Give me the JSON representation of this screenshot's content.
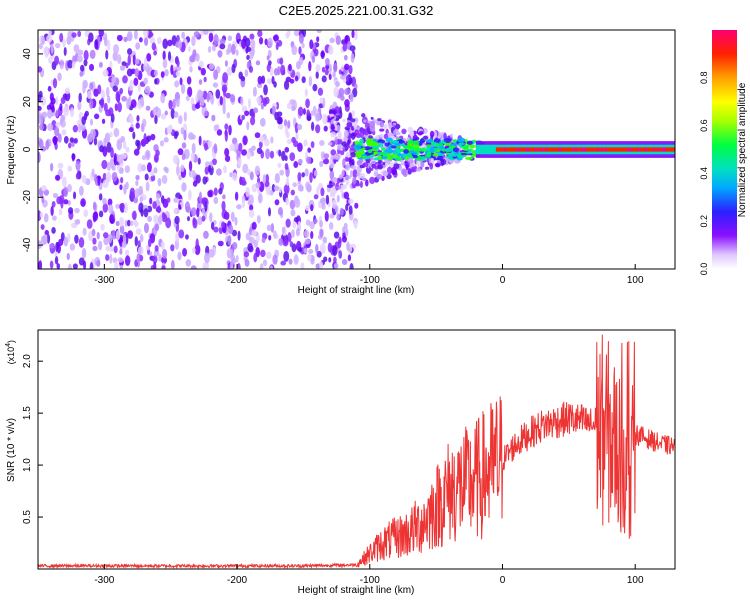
{
  "title": "C2E5.2025.221.00.31.G32",
  "chart_data": [
    {
      "type": "heatmap",
      "xlabel": "Height of straight line (km)",
      "ylabel": "Frequency (Hz)",
      "xlim": [
        -350,
        130
      ],
      "ylim": [
        -50,
        50
      ],
      "x_ticks": [
        -300,
        -200,
        -100,
        0,
        100
      ],
      "y_ticks": [
        -40,
        -20,
        0,
        20,
        40
      ],
      "colorbar": {
        "label": "Normalized spectral amplitude",
        "range": [
          0,
          1
        ],
        "ticks": [
          "0.0",
          "0.2",
          "0.4",
          "0.6",
          "0.8"
        ],
        "colormap": [
          "#7a00ff",
          "#2b20ff",
          "#00b0ff",
          "#00e0c0",
          "#00ff40",
          "#b0ff00",
          "#ffff00",
          "#ffa000",
          "#ff2000",
          "#ff0060",
          "#ff0080"
        ]
      },
      "regions": [
        {
          "x_range": [
            -350,
            -110
          ],
          "y_range": [
            -50,
            50
          ],
          "description": "broadband noise",
          "amplitude": 0.15
        },
        {
          "x_range": [
            -110,
            130
          ],
          "y_center": 0,
          "description": "narrow signal line near 0 Hz",
          "amplitude_start": 0.3,
          "amplitude_end": 1.0
        }
      ]
    },
    {
      "type": "line",
      "xlabel": "Height of straight line (km)",
      "ylabel": "SNR (10 * v/v)",
      "y_multiplier": "(x10",
      "y_exponent": "4",
      "y_multiplier_close": ")",
      "xlim": [
        -350,
        130
      ],
      "ylim": [
        0,
        2.3
      ],
      "x_ticks": [
        -300,
        -200,
        -100,
        0,
        100
      ],
      "y_ticks": [
        "0.5",
        "1.0",
        "1.5",
        "2.0"
      ],
      "color": "#ee3333",
      "series": [
        {
          "x": [
            -350,
            -300,
            -250,
            -200,
            -150,
            -110,
            -100,
            -90,
            -80,
            -70,
            -60,
            -50,
            -40,
            -30,
            -20,
            -10,
            0,
            10,
            20,
            30,
            40,
            50,
            60,
            70,
            80,
            90,
            95,
            100,
            110,
            120,
            130
          ],
          "y": [
            0.03,
            0.03,
            0.03,
            0.03,
            0.03,
            0.04,
            0.15,
            0.25,
            0.3,
            0.35,
            0.45,
            0.6,
            0.75,
            0.8,
            0.85,
            0.95,
            1.05,
            1.2,
            1.3,
            1.38,
            1.42,
            1.45,
            1.42,
            1.38,
            1.3,
            1.1,
            0.9,
            1.3,
            1.25,
            1.2,
            1.18
          ]
        }
      ]
    }
  ]
}
